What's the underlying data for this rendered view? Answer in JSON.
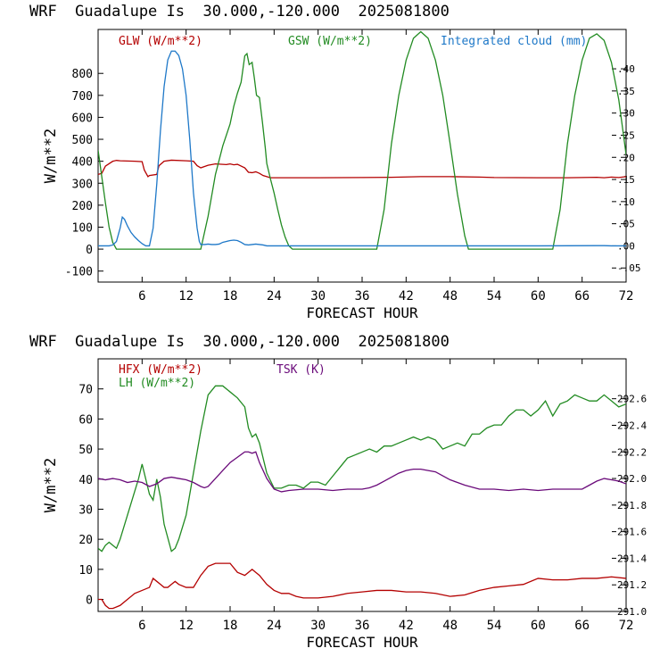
{
  "chart_data": [
    {
      "type": "line",
      "title": "WRF  Guadalupe Is  30.000,-120.000  2025081800",
      "xlabel": "FORECAST HOUR",
      "ylabel": "W/m**2",
      "xlim": [
        0,
        72
      ],
      "xticks": [
        6,
        12,
        18,
        24,
        30,
        36,
        42,
        48,
        54,
        60,
        66,
        72
      ],
      "ylim_left": [
        -150,
        1000
      ],
      "yticks_left": [
        -100,
        0,
        100,
        200,
        300,
        400,
        500,
        600,
        700,
        800
      ],
      "ylim_right": [
        -0.0818,
        0.4889
      ],
      "yticks_right": [
        -0.05,
        0,
        0.05,
        0.1,
        0.15,
        0.2,
        0.25,
        0.3,
        0.35,
        0.4
      ],
      "ytick_labels_right": [
        "-.05",
        ".00",
        ".05",
        ".10",
        ".15",
        ".20",
        ".25",
        ".30",
        ".35",
        ".40"
      ],
      "grid": false,
      "series": [
        {
          "name": "GLW (W/m**2)",
          "color": "#b40000",
          "axis": "left",
          "x": [
            0,
            0.5,
            1,
            2,
            2.5,
            3,
            4,
            5,
            6,
            6.3,
            6.8,
            7,
            8,
            8.3,
            9,
            10,
            12,
            13,
            13.5,
            14,
            15,
            16,
            17,
            17.5,
            18,
            18.5,
            19,
            20,
            20.5,
            21,
            21.5,
            22,
            22.5,
            23,
            23.5,
            24,
            30,
            36,
            40,
            44,
            48,
            52,
            54,
            60,
            64,
            66,
            68,
            69,
            70,
            71,
            72
          ],
          "y": [
            340,
            345,
            378,
            400,
            404,
            402,
            401,
            400,
            398,
            360,
            330,
            335,
            340,
            380,
            400,
            405,
            402,
            400,
            380,
            370,
            382,
            388,
            386,
            385,
            388,
            384,
            386,
            370,
            350,
            348,
            352,
            345,
            335,
            330,
            325,
            325,
            325,
            326,
            327,
            330,
            330,
            328,
            326,
            325,
            325,
            326,
            327,
            325,
            328,
            326,
            330
          ]
        },
        {
          "name": "GSW (W/m**2)",
          "color": "#228b22",
          "axis": "left",
          "x": [
            0,
            0.5,
            1,
            1.5,
            2,
            2.5,
            14,
            15,
            16,
            17,
            18,
            18.5,
            19,
            19.5,
            20,
            20.3,
            20.6,
            21,
            21.3,
            21.6,
            22,
            22.4,
            22.8,
            23,
            23.5,
            24,
            24.5,
            25,
            25.5,
            26,
            26.5,
            27,
            38,
            39,
            40,
            41,
            42,
            43,
            44,
            45,
            46,
            47,
            48,
            49,
            50,
            50.5,
            62,
            63,
            64,
            65,
            66,
            67,
            68,
            69,
            70,
            71,
            72
          ],
          "y": [
            450,
            330,
            210,
            100,
            30,
            0,
            0,
            150,
            340,
            470,
            570,
            650,
            710,
            760,
            880,
            890,
            840,
            850,
            780,
            700,
            690,
            580,
            460,
            390,
            320,
            255,
            180,
            110,
            55,
            15,
            0,
            0,
            0,
            180,
            480,
            700,
            860,
            960,
            990,
            960,
            860,
            700,
            480,
            250,
            60,
            0,
            0,
            180,
            480,
            700,
            860,
            960,
            980,
            950,
            850,
            680,
            430
          ]
        },
        {
          "name": "Integrated cloud (mm)",
          "color": "#1e78c8",
          "axis": "right",
          "x": [
            0,
            1.5,
            2,
            2.5,
            3,
            3.3,
            3.6,
            4,
            4.5,
            5,
            5.5,
            6,
            6.5,
            7,
            7.5,
            8,
            8.5,
            9,
            9.5,
            10,
            10.5,
            11,
            11.5,
            12,
            12.5,
            13,
            13.5,
            13.8,
            14,
            14.5,
            15,
            15.5,
            16,
            16.5,
            17,
            17.5,
            18,
            18.5,
            19,
            19.5,
            20,
            20.5,
            21,
            21.5,
            22,
            22.5,
            23,
            24,
            30,
            40,
            50,
            60,
            68,
            69,
            70,
            72
          ],
          "y": [
            0,
            0,
            0.002,
            0.01,
            0.04,
            0.065,
            0.06,
            0.045,
            0.03,
            0.02,
            0.012,
            0.005,
            0,
            0,
            0.04,
            0.14,
            0.26,
            0.36,
            0.42,
            0.44,
            0.44,
            0.43,
            0.4,
            0.34,
            0.24,
            0.12,
            0.04,
            0.01,
            0.003,
            0.003,
            0.004,
            0.003,
            0.003,
            0.004,
            0.008,
            0.01,
            0.012,
            0.013,
            0.012,
            0.008,
            0.003,
            0.002,
            0.003,
            0.004,
            0.003,
            0.002,
            0,
            0,
            0,
            0,
            0,
            0,
            0.0005,
            0.0005,
            0,
            0
          ]
        }
      ]
    },
    {
      "type": "line",
      "title": "WRF  Guadalupe Is  30.000,-120.000  2025081800",
      "xlabel": "FORECAST HOUR",
      "ylabel": "W/m**2",
      "xlim": [
        0,
        72
      ],
      "xticks": [
        6,
        12,
        18,
        24,
        30,
        36,
        42,
        48,
        54,
        60,
        66,
        72
      ],
      "ylim_left": [
        -4,
        80
      ],
      "yticks_left": [
        0,
        10,
        20,
        30,
        40,
        50,
        60,
        70
      ],
      "ylim_right": [
        291.0,
        292.9
      ],
      "yticks_right": [
        291.0,
        291.2,
        291.4,
        291.6,
        291.8,
        292.0,
        292.2,
        292.4,
        292.6
      ],
      "ytick_labels_right": [
        "291.0",
        "291.2",
        "291.4",
        "291.6",
        "291.8",
        "292.0",
        "292.2",
        "292.4",
        "292.6"
      ],
      "grid": false,
      "series": [
        {
          "name": "HFX (W/m**2)",
          "color": "#b40000",
          "axis": "left",
          "x": [
            0,
            0.5,
            1,
            1.5,
            2,
            3,
            4,
            5,
            6,
            7,
            7.5,
            8,
            8.5,
            9,
            9.5,
            10,
            10.5,
            11,
            12,
            13,
            14,
            15,
            16,
            17,
            18,
            19,
            20,
            21,
            21.5,
            22,
            23,
            24,
            25,
            26,
            27,
            28,
            29,
            30,
            32,
            34,
            36,
            38,
            40,
            42,
            44,
            46,
            48,
            50,
            52,
            54,
            56,
            58,
            60,
            62,
            64,
            66,
            68,
            70,
            72
          ],
          "y": [
            0,
            0,
            -2,
            -3,
            -3,
            -2,
            0,
            2,
            3,
            4,
            7,
            6,
            5,
            4,
            4,
            5,
            6,
            5,
            4,
            4,
            8,
            11,
            12,
            12,
            12,
            9,
            8,
            10,
            9,
            8,
            5,
            3,
            2,
            2,
            1,
            0.5,
            0.5,
            0.5,
            1,
            2,
            2.5,
            3,
            3,
            2.5,
            2.5,
            2,
            1,
            1.5,
            3,
            4,
            4.5,
            5,
            7,
            6.5,
            6.5,
            7,
            7,
            7.5,
            7
          ]
        },
        {
          "name": "LH  (W/m**2)",
          "color": "#228b22",
          "axis": "left",
          "x": [
            0,
            0.5,
            1,
            1.5,
            2,
            2.5,
            3,
            4,
            5,
            5.5,
            6,
            6.5,
            7,
            7.5,
            8,
            8.5,
            9,
            10,
            10.5,
            11,
            12,
            13,
            14,
            15,
            16,
            17,
            18,
            19,
            20,
            20.5,
            21,
            21.5,
            22,
            23,
            24,
            25,
            26,
            27,
            28,
            29,
            30,
            31,
            32,
            33,
            34,
            35,
            36,
            37,
            38,
            39,
            40,
            41,
            42,
            43,
            44,
            45,
            46,
            47,
            48,
            49,
            50,
            51,
            52,
            53,
            54,
            55,
            56,
            57,
            58,
            59,
            60,
            61,
            62,
            63,
            64,
            65,
            66,
            67,
            68,
            69,
            70,
            71,
            72
          ],
          "y": [
            17,
            16,
            18,
            19,
            18,
            17,
            20,
            28,
            36,
            40,
            45,
            40,
            35,
            33,
            40,
            34,
            25,
            16,
            17,
            20,
            28,
            42,
            56,
            68,
            71,
            71,
            69,
            67,
            64,
            57,
            54,
            55,
            52,
            42,
            37,
            37,
            38,
            38,
            37,
            39,
            39,
            38,
            41,
            44,
            47,
            48,
            49,
            50,
            49,
            51,
            51,
            52,
            53,
            54,
            53,
            54,
            53,
            50,
            51,
            52,
            51,
            55,
            55,
            57,
            58,
            58,
            61,
            63,
            63,
            61,
            63,
            66,
            61,
            65,
            66,
            68,
            67,
            66,
            66,
            68,
            66,
            64,
            65
          ]
        },
        {
          "name": "TSK (K)",
          "color": "#6a0a7a",
          "axis": "right",
          "x": [
            0,
            1,
            2,
            3,
            4,
            5,
            6,
            7,
            8,
            9,
            10,
            11,
            12,
            13,
            14,
            14.5,
            15,
            16,
            17,
            18,
            19,
            20,
            20.5,
            21,
            21.5,
            22,
            23,
            24,
            25,
            26,
            28,
            30,
            32,
            34,
            36,
            37,
            38,
            39,
            40,
            41,
            42,
            43,
            44,
            45,
            46,
            47,
            48,
            49,
            50,
            52,
            54,
            56,
            58,
            60,
            62,
            64,
            66,
            67,
            68,
            69,
            70,
            71,
            72
          ],
          "y": [
            292.0,
            291.99,
            292.0,
            291.99,
            291.97,
            291.98,
            291.97,
            291.94,
            291.96,
            292.0,
            292.01,
            292.0,
            291.99,
            291.97,
            291.94,
            291.93,
            291.94,
            292.0,
            292.06,
            292.12,
            292.16,
            292.2,
            292.2,
            292.19,
            292.2,
            292.12,
            292.0,
            291.92,
            291.9,
            291.91,
            291.92,
            291.92,
            291.91,
            291.92,
            291.92,
            291.93,
            291.95,
            291.98,
            292.01,
            292.04,
            292.06,
            292.07,
            292.07,
            292.06,
            292.05,
            292.02,
            291.99,
            291.97,
            291.95,
            291.92,
            291.92,
            291.91,
            291.92,
            291.91,
            291.92,
            291.92,
            291.92,
            291.95,
            291.98,
            292.0,
            291.99,
            291.98,
            291.96
          ]
        }
      ]
    }
  ]
}
